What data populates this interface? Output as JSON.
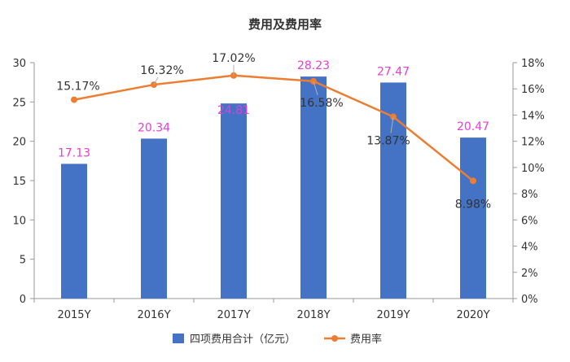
{
  "chart_data": {
    "type": "bar+line",
    "title": "费用及费用率",
    "categories": [
      "2015Y",
      "2016Y",
      "2017Y",
      "2018Y",
      "2019Y",
      "2020Y"
    ],
    "series": [
      {
        "name": "四项费用合计（亿元）",
        "kind": "bar",
        "axis": "left",
        "color": "#4472C4",
        "label_color": "#E83CD6",
        "values": [
          17.13,
          20.34,
          24.81,
          28.23,
          27.47,
          20.47
        ],
        "labels": [
          "17.13",
          "20.34",
          "24.81",
          "28.23",
          "27.47",
          "20.47"
        ]
      },
      {
        "name": "费用率",
        "kind": "line",
        "axis": "right",
        "color": "#ED7D31",
        "label_color": "#333333",
        "values": [
          15.17,
          16.32,
          17.02,
          16.58,
          13.87,
          8.98
        ],
        "labels": [
          "15.17%",
          "16.32%",
          "17.02%",
          "16.58%",
          "13.87%",
          "8.98%"
        ]
      }
    ],
    "y_left": {
      "min": 0,
      "max": 30,
      "ticks": [
        "0",
        "5",
        "10",
        "15",
        "20",
        "25",
        "30"
      ]
    },
    "y_right": {
      "min": 0,
      "max": 18,
      "ticks": [
        "0%",
        "2%",
        "4%",
        "6%",
        "8%",
        "10%",
        "12%",
        "14%",
        "16%",
        "18%"
      ]
    },
    "grid": false,
    "legend": "bottom-center"
  }
}
